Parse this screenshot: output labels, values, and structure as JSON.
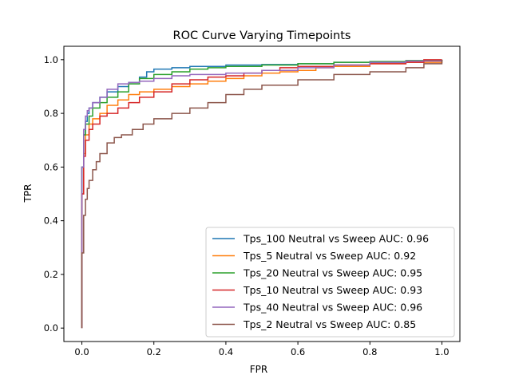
{
  "chart_data": {
    "type": "line",
    "title": "ROC Curve Varying Timepoints",
    "xlabel": "FPR",
    "ylabel": "TPR",
    "xlim": [
      -0.05,
      1.05
    ],
    "ylim": [
      -0.05,
      1.05
    ],
    "xticks": [
      0.0,
      0.2,
      0.4,
      0.6,
      0.8,
      1.0
    ],
    "yticks": [
      0.0,
      0.2,
      0.4,
      0.6,
      0.8,
      1.0
    ],
    "tick_labels": [
      "0.0",
      "0.2",
      "0.4",
      "0.6",
      "0.8",
      "1.0"
    ],
    "grid": false,
    "legend_position": "lower-right",
    "series": [
      {
        "name": "Tps_100 Neutral vs Sweep AUC: 0.96",
        "color": "#1f77b4",
        "x": [
          0.0,
          0.0,
          0.005,
          0.01,
          0.015,
          0.02,
          0.03,
          0.05,
          0.07,
          0.1,
          0.13,
          0.16,
          0.18,
          0.2,
          0.25,
          0.3,
          0.4,
          0.5,
          0.6,
          0.7,
          0.8,
          0.9,
          0.95,
          1.0
        ],
        "y": [
          0.0,
          0.6,
          0.72,
          0.77,
          0.8,
          0.82,
          0.84,
          0.86,
          0.88,
          0.9,
          0.915,
          0.935,
          0.955,
          0.965,
          0.97,
          0.975,
          0.98,
          0.982,
          0.985,
          0.99,
          0.99,
          0.995,
          0.998,
          1.0
        ]
      },
      {
        "name": "Tps_5 Neutral vs Sweep AUC: 0.92",
        "color": "#ff7f0e",
        "x": [
          0.0,
          0.0,
          0.005,
          0.01,
          0.02,
          0.03,
          0.05,
          0.07,
          0.1,
          0.13,
          0.16,
          0.2,
          0.25,
          0.3,
          0.35,
          0.4,
          0.45,
          0.5,
          0.55,
          0.6,
          0.65,
          0.7,
          0.8,
          0.9,
          1.0
        ],
        "y": [
          0.0,
          0.5,
          0.65,
          0.72,
          0.76,
          0.78,
          0.8,
          0.83,
          0.85,
          0.87,
          0.88,
          0.89,
          0.9,
          0.91,
          0.92,
          0.93,
          0.94,
          0.95,
          0.955,
          0.96,
          0.97,
          0.975,
          0.985,
          0.99,
          1.0
        ]
      },
      {
        "name": "Tps_20 Neutral vs Sweep AUC: 0.95",
        "color": "#2ca02c",
        "x": [
          0.0,
          0.0,
          0.005,
          0.01,
          0.02,
          0.03,
          0.05,
          0.07,
          0.1,
          0.13,
          0.16,
          0.2,
          0.25,
          0.3,
          0.35,
          0.4,
          0.5,
          0.6,
          0.7,
          0.8,
          0.9,
          1.0
        ],
        "y": [
          0.0,
          0.6,
          0.72,
          0.76,
          0.79,
          0.82,
          0.84,
          0.86,
          0.88,
          0.91,
          0.93,
          0.945,
          0.955,
          0.965,
          0.97,
          0.975,
          0.98,
          0.985,
          0.99,
          0.993,
          0.997,
          1.0
        ]
      },
      {
        "name": "Tps_10 Neutral vs Sweep AUC: 0.93",
        "color": "#d62728",
        "x": [
          0.0,
          0.0,
          0.005,
          0.01,
          0.02,
          0.03,
          0.05,
          0.07,
          0.1,
          0.13,
          0.16,
          0.2,
          0.25,
          0.3,
          0.35,
          0.4,
          0.45,
          0.5,
          0.55,
          0.6,
          0.7,
          0.8,
          0.9,
          0.95,
          1.0
        ],
        "y": [
          0.0,
          0.5,
          0.64,
          0.7,
          0.74,
          0.76,
          0.79,
          0.8,
          0.82,
          0.84,
          0.86,
          0.88,
          0.91,
          0.925,
          0.935,
          0.94,
          0.95,
          0.96,
          0.97,
          0.975,
          0.98,
          0.985,
          0.99,
          1.0,
          1.0
        ]
      },
      {
        "name": "Tps_40 Neutral vs Sweep AUC: 0.96",
        "color": "#9467bd",
        "x": [
          0.0,
          0.0,
          0.005,
          0.01,
          0.015,
          0.02,
          0.03,
          0.05,
          0.07,
          0.1,
          0.13,
          0.16,
          0.2,
          0.25,
          0.3,
          0.4,
          0.5,
          0.6,
          0.7,
          0.8,
          0.9,
          1.0
        ],
        "y": [
          0.0,
          0.6,
          0.74,
          0.79,
          0.81,
          0.82,
          0.84,
          0.86,
          0.89,
          0.91,
          0.915,
          0.92,
          0.93,
          0.94,
          0.945,
          0.95,
          0.96,
          0.97,
          0.98,
          0.99,
          0.995,
          1.0
        ]
      },
      {
        "name": "Tps_2 Neutral vs Sweep AUC: 0.85",
        "color": "#8c564b",
        "x": [
          0.0,
          0.0,
          0.005,
          0.01,
          0.015,
          0.02,
          0.03,
          0.04,
          0.05,
          0.07,
          0.09,
          0.11,
          0.14,
          0.17,
          0.2,
          0.25,
          0.3,
          0.35,
          0.4,
          0.45,
          0.5,
          0.6,
          0.7,
          0.8,
          0.9,
          0.95,
          1.0
        ],
        "y": [
          0.0,
          0.28,
          0.42,
          0.48,
          0.52,
          0.55,
          0.59,
          0.62,
          0.65,
          0.69,
          0.71,
          0.72,
          0.74,
          0.76,
          0.78,
          0.8,
          0.82,
          0.84,
          0.87,
          0.89,
          0.905,
          0.925,
          0.945,
          0.955,
          0.97,
          0.985,
          1.0
        ]
      }
    ]
  }
}
